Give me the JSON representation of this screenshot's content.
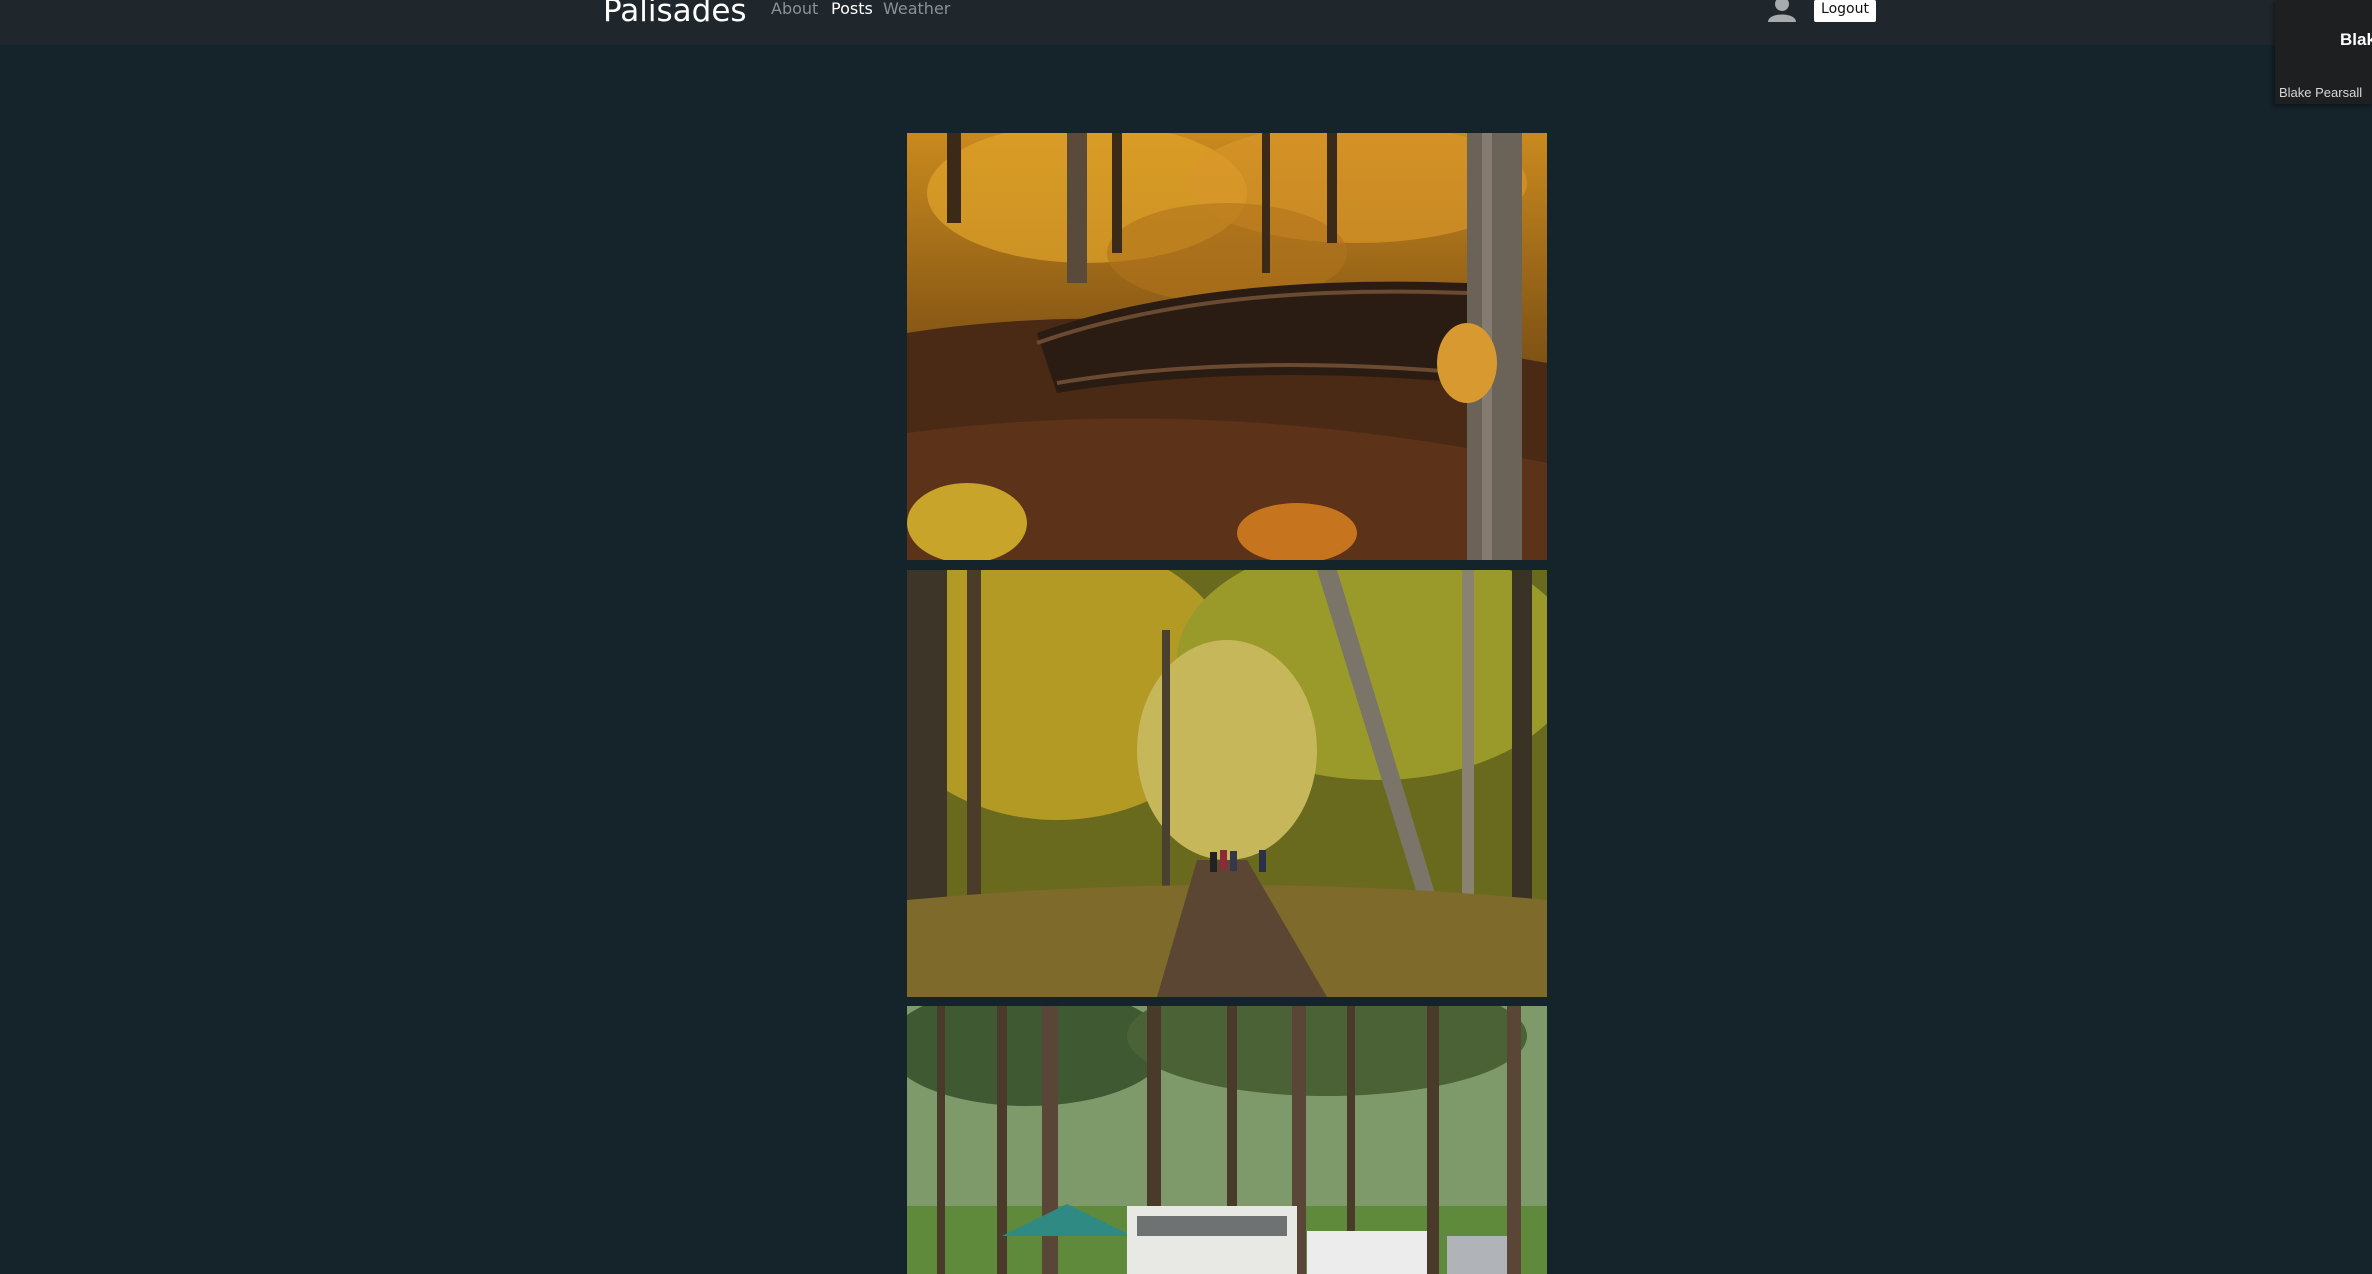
{
  "navbar": {
    "brand": "Palisades",
    "links": [
      {
        "label": "About",
        "active": false
      },
      {
        "label": "Posts",
        "active": true
      },
      {
        "label": "Weather",
        "active": false
      }
    ],
    "user_icon": "user-avatar-icon",
    "logout_label": "Logout"
  },
  "side_panel": {
    "name_large": "Blake",
    "name_small": "Blake Pearsall"
  },
  "posts": [
    {
      "image": "autumn-forest-footbridge"
    },
    {
      "image": "forest-trail-hikers"
    },
    {
      "image": "pine-campground-trailers"
    }
  ],
  "colors": {
    "page_bg": "#15232a",
    "navbar_bg": "#1f272c",
    "nav_link": "#8b9195",
    "nav_link_active": "#ffffff"
  }
}
